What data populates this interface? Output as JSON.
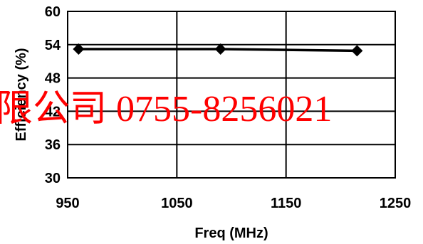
{
  "chart_data": {
    "type": "line",
    "title": "",
    "xlabel": "Freq (MHz)",
    "ylabel": "Efficiency (%)",
    "xlim": [
      950,
      1250
    ],
    "ylim": [
      30,
      60
    ],
    "x_ticks": [
      950,
      1050,
      1150,
      1250
    ],
    "y_ticks": [
      30,
      36,
      42,
      48,
      54,
      60
    ],
    "grid": true,
    "legend": "none",
    "series": [
      {
        "color": "#000000",
        "marker": "diamond",
        "points": [
          {
            "x": 960,
            "y": 53.2
          },
          {
            "x": 1090,
            "y": 53.2
          },
          {
            "x": 1215,
            "y": 52.9
          }
        ]
      }
    ]
  },
  "watermark": {
    "text": "限公司 0755-8256021",
    "color": "#ff0000"
  }
}
